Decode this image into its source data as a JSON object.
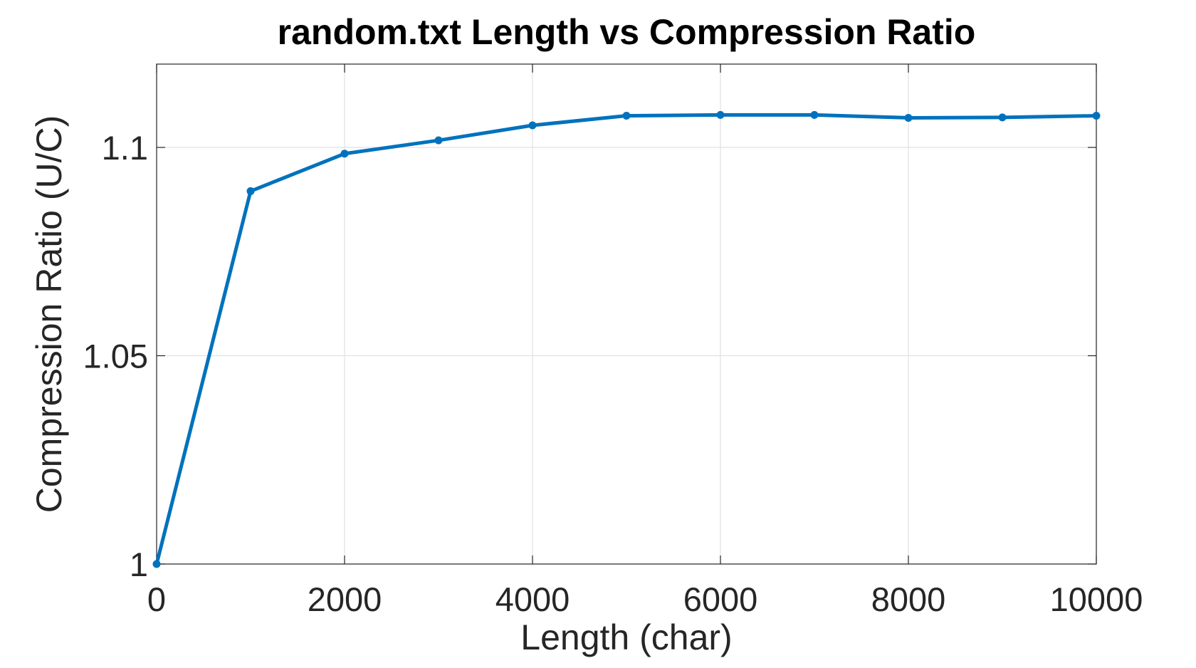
{
  "chart_data": {
    "type": "line",
    "title": "random.txt Length vs Compression Ratio",
    "xlabel": "Length (char)",
    "ylabel": "Compression Ratio (U/C)",
    "xlim": [
      0,
      10000
    ],
    "ylim": [
      1,
      1.12
    ],
    "xticks": [
      0,
      2000,
      4000,
      6000,
      8000,
      10000
    ],
    "xtick_labels": [
      "0",
      "2000",
      "4000",
      "6000",
      "8000",
      "10000"
    ],
    "yticks": [
      1,
      1.05,
      1.1
    ],
    "ytick_labels": [
      "1",
      "1.05",
      "1.1"
    ],
    "grid": true,
    "series": [
      {
        "color": "#0072BD",
        "x": [
          0,
          1000,
          2000,
          3000,
          4000,
          5000,
          6000,
          7000,
          8000,
          9000,
          10000
        ],
        "y": [
          1.0,
          1.0895,
          1.0985,
          1.1017,
          1.1053,
          1.1076,
          1.1078,
          1.1078,
          1.1071,
          1.1072,
          1.1076
        ]
      }
    ]
  }
}
